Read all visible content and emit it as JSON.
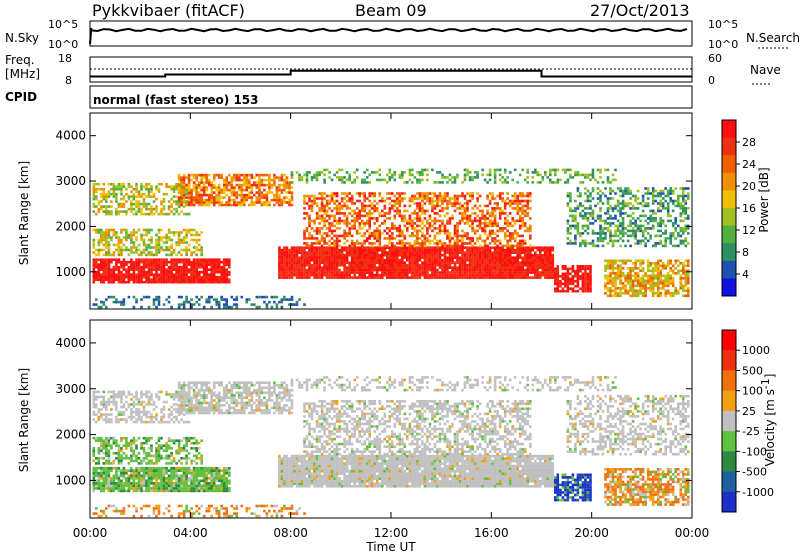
{
  "header": {
    "station": "Pykkvibaer (fitACF)",
    "beam": "Beam 09",
    "date": "27/Oct/2013"
  },
  "nsky_panel": {
    "left_label": "N.Sky",
    "right_label": "N.Search",
    "ticks_left": [
      "10^5",
      "10^0"
    ],
    "ticks_right": [
      "10^5",
      "10^0"
    ]
  },
  "freq_panel": {
    "left_label_line1": "Freq.",
    "left_label_line2": "[MHz]",
    "right_label": "Nave",
    "ticks_left": [
      "18",
      "8"
    ],
    "ticks_right": [
      "60",
      "0"
    ]
  },
  "cpid": {
    "label": "CPID",
    "text": "normal (fast stereo) 153"
  },
  "power_panel": {
    "ylabel": "Slant Range [km]",
    "yticks": [
      "4000",
      "3000",
      "2000",
      "1000"
    ],
    "colorbar_title": "Power [dB]",
    "colorbar_ticks": [
      "28",
      "24",
      "20",
      "16",
      "12",
      "8",
      "4"
    ],
    "colors": [
      "#1010e0",
      "#2050b0",
      "#2e8f60",
      "#50b040",
      "#a0c020",
      "#f0c000",
      "#f09000",
      "#f06000",
      "#f03010",
      "#ff1010"
    ]
  },
  "velocity_panel": {
    "ylabel": "Slant Range [km]",
    "yticks": [
      "4000",
      "3000",
      "2000",
      "1000"
    ],
    "colorbar_title": "Velocity [m s",
    "colorbar_sup": "-1",
    "colorbar_title_end": "]",
    "colorbar_ticks": [
      "1000",
      "500",
      "100",
      "25",
      "-25",
      "-100",
      "-500",
      "-1000"
    ],
    "colors": [
      "#1a2ec8",
      "#2060a0",
      "#2e8a40",
      "#60c040",
      "#c0c0c0",
      "#f0a010",
      "#f07010",
      "#f03010",
      "#ff0000"
    ]
  },
  "xaxis": {
    "label": "Time UT",
    "ticks": [
      "00:00",
      "04:00",
      "08:00",
      "12:00",
      "16:00",
      "20:00",
      "00:00"
    ]
  },
  "chart_data": [
    {
      "type": "line",
      "title": "N.Sky / N.Search",
      "x": [
        "00:00",
        "04:00",
        "08:00",
        "12:00",
        "16:00",
        "20:00",
        "24:00"
      ],
      "series": [
        {
          "name": "N.Sky",
          "values": [
            10000,
            12000,
            11000,
            11500,
            11000,
            12000,
            11000
          ]
        }
      ],
      "ylim": [
        1,
        100000
      ],
      "scale": "log"
    },
    {
      "type": "line",
      "title": "Freq. [MHz] / Nave",
      "x": [
        "00:00",
        "02:00",
        "03:00",
        "08:00",
        "12:00",
        "16:00",
        "18:00",
        "20:00",
        "24:00"
      ],
      "series": [
        {
          "name": "Freq.",
          "values": [
            10.2,
            10.2,
            11.0,
            12.5,
            12.5,
            12.5,
            10.2,
            10.2,
            10.2
          ]
        }
      ],
      "ylim": [
        8,
        18
      ]
    },
    {
      "type": "heatmap",
      "title": "Power [dB]",
      "xlabel": "Time UT",
      "ylabel": "Slant Range [km]",
      "xlim": [
        0,
        24
      ],
      "ylim": [
        180,
        4500
      ],
      "colorbar_range": [
        0,
        30
      ]
    },
    {
      "type": "heatmap",
      "title": "Velocity [m s-1]",
      "xlabel": "Time UT",
      "ylabel": "Slant Range [km]",
      "xlim": [
        0,
        24
      ],
      "ylim": [
        180,
        4500
      ],
      "colorbar_levels": [
        1000,
        500,
        100,
        25,
        -25,
        -100,
        -500,
        -1000
      ]
    }
  ]
}
